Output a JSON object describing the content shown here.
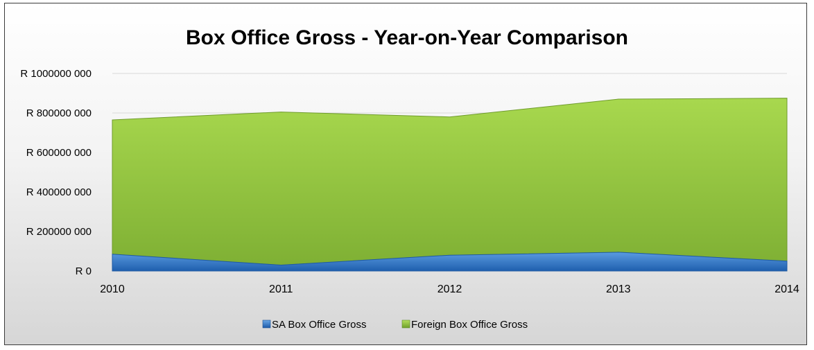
{
  "chart_data": {
    "type": "area",
    "stacked": true,
    "title": "Box Office Gross - Year-on-Year Comparison",
    "categories": [
      "2010",
      "2011",
      "2012",
      "2013",
      "2014"
    ],
    "series": [
      {
        "name": "SA Box Office Gross",
        "values": [
          85000000,
          30000000,
          80000000,
          95000000,
          50000000
        ],
        "color": "#2f74c9"
      },
      {
        "name": "Foreign Box Office Gross",
        "values": [
          680000000,
          775000000,
          700000000,
          775000000,
          825000000
        ],
        "color": "#8fc53a"
      }
    ],
    "ylim": [
      0,
      1000000000
    ],
    "yticks": [
      {
        "value": 0,
        "label": "R 0"
      },
      {
        "value": 200000000,
        "label": "R 200000 000"
      },
      {
        "value": 400000000,
        "label": "R 400000 000"
      },
      {
        "value": 600000000,
        "label": "R 600000 000"
      },
      {
        "value": 800000000,
        "label": "R 800000 000"
      },
      {
        "value": 1000000000,
        "label": "R 1000000 000"
      }
    ],
    "grid": true,
    "legend_position": "bottom"
  }
}
